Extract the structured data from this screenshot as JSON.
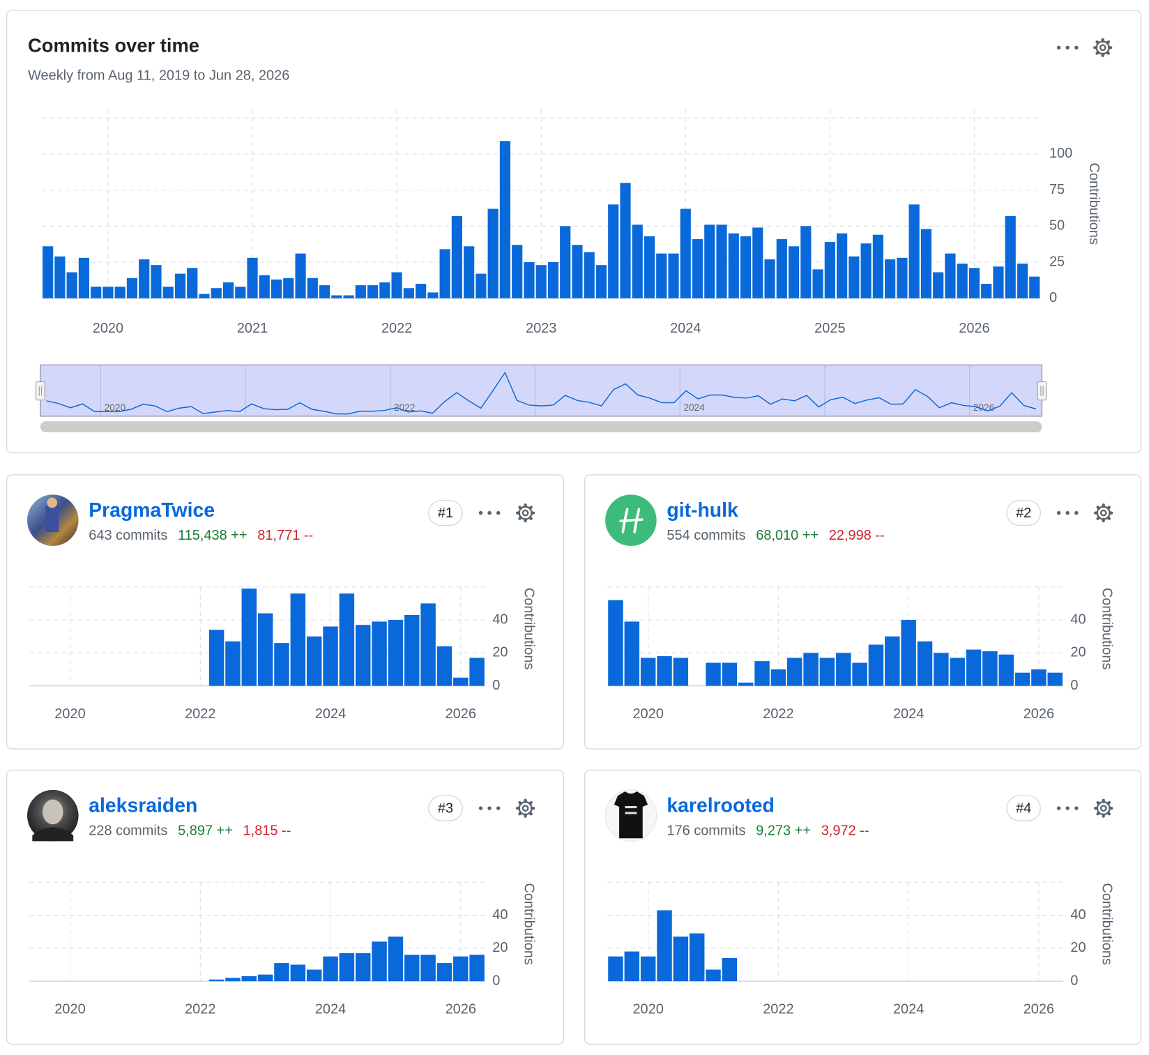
{
  "chart_data": [
    {
      "type": "bar",
      "title": "Commits over time",
      "subtitle": "Weekly from Aug 11, 2019 to Jun 28, 2026",
      "y_label": "Contributions",
      "color": "#0969da",
      "grid": true,
      "navigator": true,
      "categories": [
        null,
        null,
        null,
        null,
        null,
        "2020",
        null,
        null,
        null,
        null,
        null,
        null,
        null,
        null,
        null,
        null,
        null,
        "2021",
        null,
        null,
        null,
        null,
        null,
        null,
        null,
        null,
        null,
        null,
        null,
        "2022",
        null,
        null,
        null,
        null,
        null,
        null,
        null,
        null,
        null,
        null,
        null,
        "2023",
        null,
        null,
        null,
        null,
        null,
        null,
        null,
        null,
        null,
        null,
        null,
        "2024",
        null,
        null,
        null,
        null,
        null,
        null,
        null,
        null,
        null,
        null,
        null,
        "2025",
        null,
        null,
        null,
        null,
        null,
        null,
        null,
        null,
        null,
        null,
        null,
        "2026",
        null,
        null,
        null,
        null,
        null
      ],
      "values": [
        36,
        29,
        18,
        28,
        8,
        8,
        8,
        14,
        27,
        23,
        8,
        17,
        21,
        3,
        7,
        11,
        8,
        28,
        16,
        13,
        14,
        31,
        14,
        9,
        2,
        2,
        9,
        9,
        11,
        18,
        7,
        10,
        4,
        34,
        57,
        36,
        17,
        62,
        109,
        37,
        25,
        23,
        25,
        50,
        37,
        32,
        23,
        65,
        80,
        51,
        43,
        31,
        31,
        62,
        41,
        51,
        51,
        45,
        43,
        49,
        27,
        41,
        36,
        50,
        20,
        39,
        45,
        29,
        38,
        44,
        27,
        28,
        65,
        48,
        18,
        31,
        24,
        21,
        10,
        22,
        57,
        24,
        15
      ],
      "ylim": [
        0,
        125
      ],
      "yticks": [
        0,
        25,
        50,
        75,
        100
      ]
    },
    {
      "type": "bar",
      "name": "PragmaTwice",
      "commits": "643 commits",
      "additions": "115,438 ++",
      "deletions": "81,771 --",
      "rank": "#1",
      "y_label": "Contributions",
      "color": "#0969da",
      "grid": true,
      "categories": [
        null,
        null,
        "2020",
        null,
        null,
        null,
        null,
        null,
        null,
        null,
        "2022",
        null,
        null,
        null,
        null,
        null,
        null,
        null,
        "2024",
        null,
        null,
        null,
        null,
        null,
        null,
        null,
        "2026",
        null
      ],
      "values": [
        0,
        0,
        0,
        0,
        0,
        0,
        0,
        0,
        0,
        0,
        0,
        34,
        27,
        59,
        44,
        26,
        56,
        30,
        36,
        56,
        37,
        39,
        40,
        43,
        50,
        24,
        5,
        17
      ],
      "ylim": [
        0,
        60
      ],
      "yticks": [
        0,
        20,
        40
      ]
    },
    {
      "type": "bar",
      "name": "git-hulk",
      "commits": "554 commits",
      "additions": "68,010 ++",
      "deletions": "22,998 --",
      "rank": "#2",
      "y_label": "Contributions",
      "color": "#0969da",
      "grid": true,
      "categories": [
        null,
        null,
        "2020",
        null,
        null,
        null,
        null,
        null,
        null,
        null,
        "2022",
        null,
        null,
        null,
        null,
        null,
        null,
        null,
        "2024",
        null,
        null,
        null,
        null,
        null,
        null,
        null,
        "2026",
        null
      ],
      "values": [
        52,
        39,
        17,
        18,
        17,
        0,
        14,
        14,
        2,
        15,
        10,
        17,
        20,
        17,
        20,
        14,
        25,
        30,
        40,
        27,
        20,
        17,
        22,
        21,
        19,
        8,
        10,
        8
      ],
      "ylim": [
        0,
        60
      ],
      "yticks": [
        0,
        20,
        40
      ]
    },
    {
      "type": "bar",
      "name": "aleksraiden",
      "commits": "228 commits",
      "additions": "5,897 ++",
      "deletions": "1,815 --",
      "rank": "#3",
      "y_label": "Contributions",
      "color": "#0969da",
      "grid": true,
      "categories": [
        null,
        null,
        "2020",
        null,
        null,
        null,
        null,
        null,
        null,
        null,
        "2022",
        null,
        null,
        null,
        null,
        null,
        null,
        null,
        "2024",
        null,
        null,
        null,
        null,
        null,
        null,
        null,
        "2026",
        null
      ],
      "values": [
        0,
        0,
        0,
        0,
        0,
        0,
        0,
        0,
        0,
        0,
        0,
        1,
        2,
        3,
        4,
        11,
        10,
        7,
        15,
        17,
        17,
        24,
        27,
        16,
        16,
        11,
        15,
        16
      ],
      "ylim": [
        0,
        60
      ],
      "yticks": [
        0,
        20,
        40
      ]
    },
    {
      "type": "bar",
      "name": "karelrooted",
      "commits": "176 commits",
      "additions": "9,273 ++",
      "deletions": "3,972 --",
      "rank": "#4",
      "y_label": "Contributions",
      "color": "#0969da",
      "grid": true,
      "categories": [
        null,
        null,
        "2020",
        null,
        null,
        null,
        null,
        null,
        null,
        null,
        "2022",
        null,
        null,
        null,
        null,
        null,
        null,
        null,
        "2024",
        null,
        null,
        null,
        null,
        null,
        null,
        null,
        "2026",
        null
      ],
      "values": [
        15,
        18,
        15,
        43,
        27,
        29,
        7,
        14,
        0,
        0,
        0,
        0,
        0,
        0,
        0,
        0,
        0,
        0,
        0,
        0,
        0,
        0,
        0,
        0,
        0,
        0,
        0,
        0
      ],
      "ylim": [
        0,
        60
      ],
      "yticks": [
        0,
        20,
        40
      ]
    }
  ]
}
